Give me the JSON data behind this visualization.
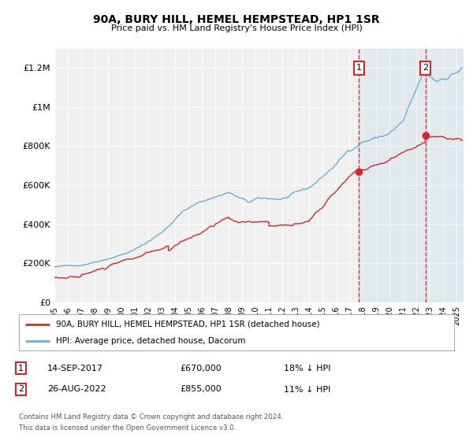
{
  "title": "90A, BURY HILL, HEMEL HEMPSTEAD, HP1 1SR",
  "subtitle": "Price paid vs. HM Land Registry's House Price Index (HPI)",
  "ylim": [
    0,
    1300000
  ],
  "xlim_start": 1995.0,
  "xlim_end": 2025.5,
  "yticks": [
    0,
    200000,
    400000,
    600000,
    800000,
    1000000,
    1200000
  ],
  "ytick_labels": [
    "£0",
    "£200K",
    "£400K",
    "£600K",
    "£800K",
    "£1M",
    "£1.2M"
  ],
  "xtick_years": [
    1995,
    1996,
    1997,
    1998,
    1999,
    2000,
    2001,
    2002,
    2003,
    2004,
    2005,
    2006,
    2007,
    2008,
    2009,
    2010,
    2011,
    2012,
    2013,
    2014,
    2015,
    2016,
    2017,
    2018,
    2019,
    2020,
    2021,
    2022,
    2023,
    2024,
    2025
  ],
  "hpi_color": "#6baed6",
  "price_color": "#d62728",
  "marker1_date": 2017.71,
  "marker1_price": 670000,
  "marker2_date": 2022.65,
  "marker2_price": 855000,
  "vline_color": "#d62728",
  "background_color": "#ffffff",
  "plot_bg_color": "#f0f0f0",
  "grid_color": "#ffffff",
  "legend_label_red": "90A, BURY HILL, HEMEL HEMPSTEAD, HP1 1SR (detached house)",
  "legend_label_blue": "HPI: Average price, detached house, Dacorum",
  "annotation1_date": "14-SEP-2017",
  "annotation1_price": "£670,000",
  "annotation1_hpi": "18% ↓ HPI",
  "annotation2_date": "26-AUG-2022",
  "annotation2_price": "£855,000",
  "annotation2_hpi": "11% ↓ HPI",
  "footer1": "Contains HM Land Registry data © Crown copyright and database right 2024.",
  "footer2": "This data is licensed under the Open Government Licence v3.0."
}
